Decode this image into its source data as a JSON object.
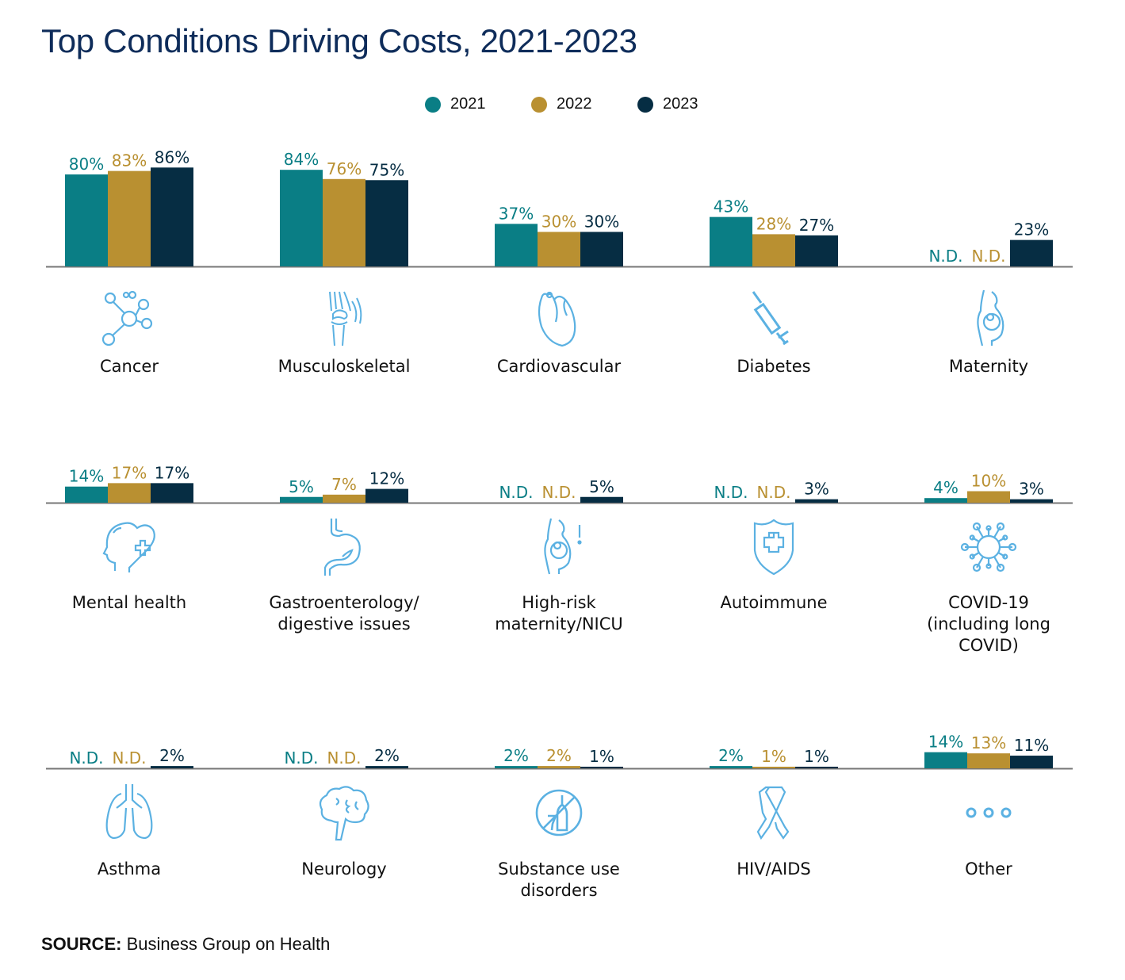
{
  "title": "Top Conditions Driving Costs, 2021-2023",
  "source": {
    "label": "SOURCE:",
    "text": "Business Group on Health"
  },
  "colors": {
    "2021": "#0a7e85",
    "2022": "#b99031",
    "2023": "#062d43",
    "icon": "#5bb1e2",
    "axis": "#777777"
  },
  "icon_color": "#5bb1e2",
  "chart_data": {
    "type": "bar",
    "title": "Top Conditions Driving Costs, 2021-2023",
    "xlabel": "",
    "ylabel": "",
    "ylim": [
      0,
      100
    ],
    "grid": false,
    "legend": {
      "position": "top-center",
      "entries": [
        "2021",
        "2022",
        "2023"
      ]
    },
    "na_label": "N.D.",
    "series_names": [
      "2021",
      "2022",
      "2023"
    ],
    "categories": [
      {
        "name": "Cancer",
        "lines": [
          "Cancer"
        ],
        "icon": "molecule-icon",
        "values": [
          80,
          83,
          86
        ]
      },
      {
        "name": "Musculoskeletal",
        "lines": [
          "Musculoskeletal"
        ],
        "icon": "knee-joint-icon",
        "values": [
          84,
          76,
          75
        ]
      },
      {
        "name": "Cardiovascular",
        "lines": [
          "Cardiovascular"
        ],
        "icon": "heart-icon",
        "values": [
          37,
          30,
          30
        ]
      },
      {
        "name": "Diabetes",
        "lines": [
          "Diabetes"
        ],
        "icon": "syringe-icon",
        "values": [
          43,
          28,
          27
        ]
      },
      {
        "name": "Maternity",
        "lines": [
          "Maternity"
        ],
        "icon": "pregnancy-icon",
        "values": [
          null,
          null,
          23
        ]
      },
      {
        "name": "Mental health",
        "lines": [
          "Mental health"
        ],
        "icon": "head-heart-icon",
        "values": [
          14,
          17,
          17
        ]
      },
      {
        "name": "Gastroenterology/ digestive issues",
        "lines": [
          "Gastroenterology/",
          "digestive issues"
        ],
        "icon": "stomach-icon",
        "values": [
          5,
          7,
          12
        ]
      },
      {
        "name": "High-risk maternity/NICU",
        "lines": [
          "High-risk",
          "maternity/NICU"
        ],
        "icon": "high-risk-pregnancy-icon",
        "values": [
          null,
          null,
          5
        ]
      },
      {
        "name": "Autoimmune",
        "lines": [
          "Autoimmune"
        ],
        "icon": "shield-cross-icon",
        "values": [
          null,
          null,
          3
        ]
      },
      {
        "name": "COVID-19 (including long COVID)",
        "lines": [
          "COVID-19",
          "(including long",
          "COVID)"
        ],
        "icon": "virus-icon",
        "values": [
          4,
          10,
          3
        ]
      },
      {
        "name": "Asthma",
        "lines": [
          "Asthma"
        ],
        "icon": "lungs-icon",
        "values": [
          null,
          null,
          2
        ]
      },
      {
        "name": "Neurology",
        "lines": [
          "Neurology"
        ],
        "icon": "brain-icon",
        "values": [
          null,
          null,
          2
        ]
      },
      {
        "name": "Substance use disorders",
        "lines": [
          "Substance use",
          "disorders"
        ],
        "icon": "no-alcohol-icon",
        "values": [
          2,
          2,
          1
        ]
      },
      {
        "name": "HIV/AIDS",
        "lines": [
          "HIV/AIDS"
        ],
        "icon": "ribbon-icon",
        "values": [
          2,
          1,
          1
        ]
      },
      {
        "name": "Other",
        "lines": [
          "Other"
        ],
        "icon": "more-dots-icon",
        "values": [
          14,
          13,
          11
        ]
      }
    ]
  }
}
